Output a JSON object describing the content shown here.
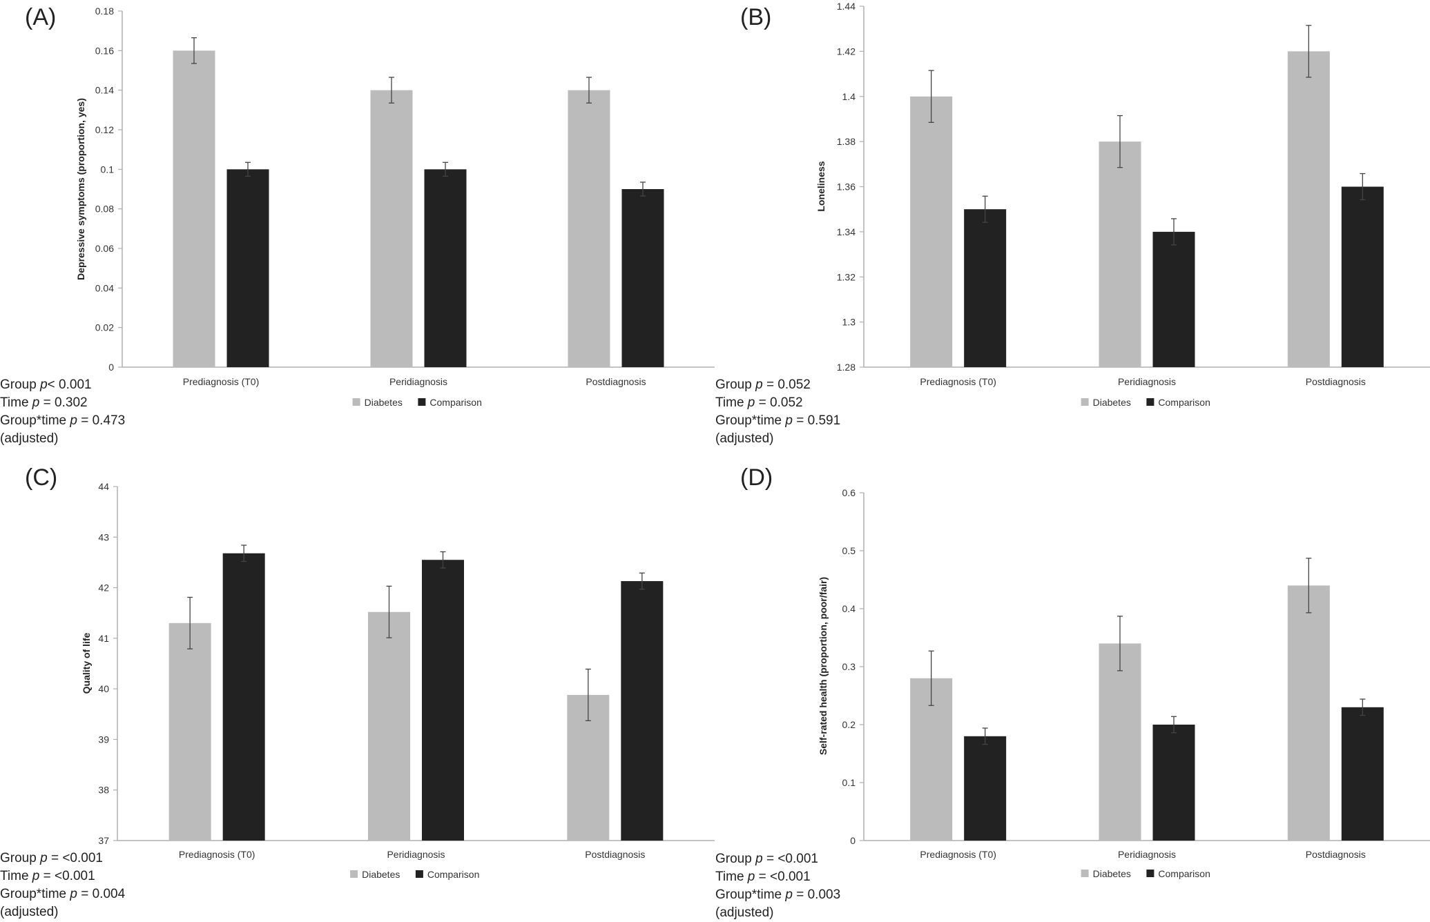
{
  "colors": {
    "diabetes": "#BBBBBB",
    "comparison": "#222222",
    "axis": "#AFAFAF",
    "errorbar": "#444444"
  },
  "panels": {
    "A": {
      "letter": "(A)",
      "stats": [
        "Group p< 0.001",
        "Time p = 0.302",
        "Group*time p = 0.473",
        "(adjusted)"
      ]
    },
    "B": {
      "letter": "(B)",
      "stats": [
        "Group p = 0.052",
        "Time p = 0.052",
        "Group*time p = 0.591",
        "(adjusted)"
      ]
    },
    "C": {
      "letter": "(C)",
      "stats": [
        "Group p = <0.001",
        "Time p = <0.001",
        "Group*time p = 0.004",
        "(adjusted)"
      ]
    },
    "D": {
      "letter": "(D)",
      "stats": [
        "Group p = <0.001",
        "Time p = <0.001",
        "Group*time p = 0.003",
        "(adjusted)"
      ]
    }
  },
  "chart_data": [
    {
      "id": "A",
      "type": "bar",
      "categories": [
        "Prediagnosis (T0)",
        "Peridiagnosis",
        "Postdiagnosis"
      ],
      "series": [
        {
          "name": "Diabetes",
          "values": [
            0.16,
            0.14,
            0.14
          ],
          "error": [
            0.0065,
            0.0065,
            0.0065
          ]
        },
        {
          "name": "Comparison",
          "values": [
            0.1,
            0.1,
            0.09
          ],
          "error": [
            0.0035,
            0.0035,
            0.0035
          ]
        }
      ],
      "ylabel": "Depressive symptoms (proportion, yes)",
      "ylim": [
        0,
        0.18
      ],
      "yticks": [
        "0",
        "0.02",
        "0.04",
        "0.06",
        "0.08",
        "0.1",
        "0.12",
        "0.14",
        "0.16",
        "0.18"
      ],
      "legend": "bottom",
      "grid": false
    },
    {
      "id": "B",
      "type": "bar",
      "categories": [
        "Prediagnosis (T0)",
        "Peridiagnosis",
        "Postdiagnosis"
      ],
      "series": [
        {
          "name": "Diabetes",
          "values": [
            1.4,
            1.38,
            1.42
          ],
          "error": [
            0.0115,
            0.0115,
            0.0115
          ]
        },
        {
          "name": "Comparison",
          "values": [
            1.35,
            1.34,
            1.36
          ],
          "error": [
            0.0058,
            0.0058,
            0.0058
          ]
        }
      ],
      "ylabel": "Loneliness",
      "ylim": [
        1.28,
        1.44
      ],
      "yticks": [
        "1.28",
        "1.3",
        "1.32",
        "1.34",
        "1.36",
        "1.38",
        "1.4",
        "1.42",
        "1.44"
      ],
      "legend": "bottom",
      "grid": false
    },
    {
      "id": "C",
      "type": "bar",
      "categories": [
        "Prediagnosis (T0)",
        "Peridiagnosis",
        "Postdiagnosis"
      ],
      "series": [
        {
          "name": "Diabetes",
          "values": [
            41.3,
            41.52,
            39.88
          ],
          "error": [
            0.51,
            0.51,
            0.51
          ]
        },
        {
          "name": "Comparison",
          "values": [
            42.68,
            42.55,
            42.13
          ],
          "error": [
            0.16,
            0.16,
            0.16
          ]
        }
      ],
      "ylabel": "Quality of life",
      "ylim": [
        37,
        44
      ],
      "yticks": [
        "37",
        "38",
        "39",
        "40",
        "41",
        "42",
        "43",
        "44"
      ],
      "legend": "bottom",
      "grid": false
    },
    {
      "id": "D",
      "type": "bar",
      "categories": [
        "Prediagnosis (T0)",
        "Peridiagnosis",
        "Postdiagnosis"
      ],
      "series": [
        {
          "name": "Diabetes",
          "values": [
            0.28,
            0.34,
            0.44
          ],
          "error": [
            0.047,
            0.047,
            0.047
          ]
        },
        {
          "name": "Comparison",
          "values": [
            0.18,
            0.2,
            0.23
          ],
          "error": [
            0.014,
            0.014,
            0.014
          ]
        }
      ],
      "ylabel": "Self-rated health (proportion, poor/fair)",
      "ylim": [
        0,
        0.6
      ],
      "yticks": [
        "0",
        "0.1",
        "0.2",
        "0.3",
        "0.4",
        "0.5",
        "0.6"
      ],
      "legend": "bottom",
      "grid": false
    }
  ]
}
